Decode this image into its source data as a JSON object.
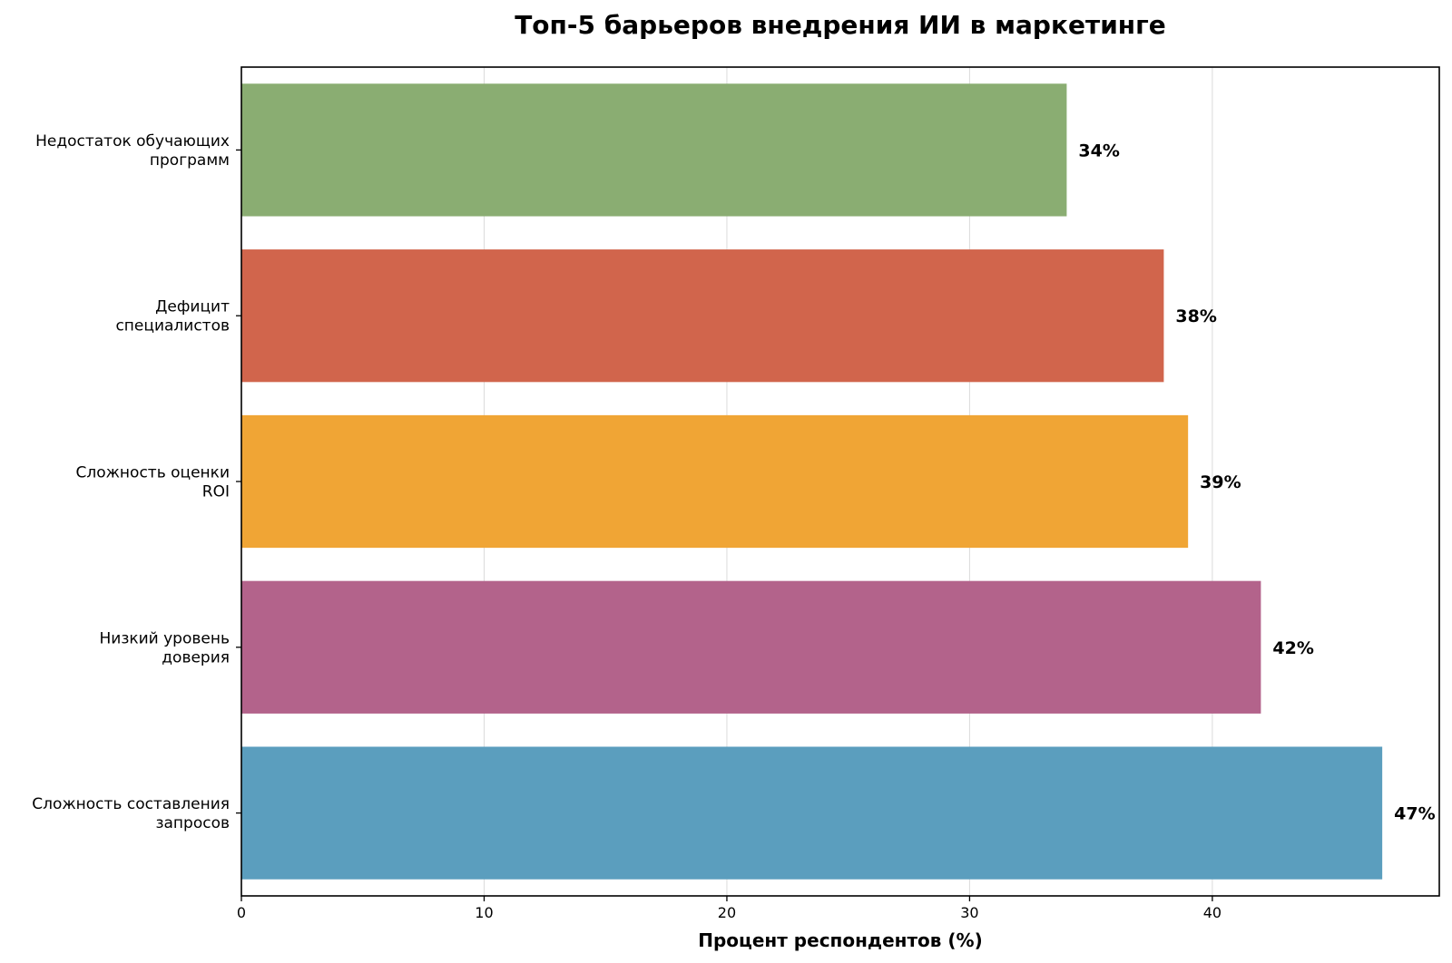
{
  "chart_data": {
    "type": "bar",
    "orientation": "horizontal",
    "title": "Топ-5 барьеров внедрения ИИ в маркетинге",
    "xlabel": "Процент респондентов (%)",
    "ylabel": "",
    "xlim": [
      0,
      49.35
    ],
    "xticks": [
      0,
      10,
      20,
      30,
      40
    ],
    "xtick_labels": [
      "0",
      "10",
      "20",
      "30",
      "40"
    ],
    "grid": "vertical",
    "legend": "none",
    "categories": [
      [
        "Сложность составления",
        "запросов"
      ],
      [
        "Низкий уровень",
        "доверия"
      ],
      [
        "Сложность оценки",
        "ROI"
      ],
      [
        "Дефицит",
        "специалистов"
      ],
      [
        "Недостаток обучающих",
        "программ"
      ]
    ],
    "values": [
      47,
      42,
      39,
      38,
      34
    ],
    "value_labels": [
      "47%",
      "42%",
      "39%",
      "38%",
      "34%"
    ],
    "colors": [
      "#5b9ebe",
      "#b3638b",
      "#f0a535",
      "#d1654c",
      "#8aad72"
    ]
  }
}
